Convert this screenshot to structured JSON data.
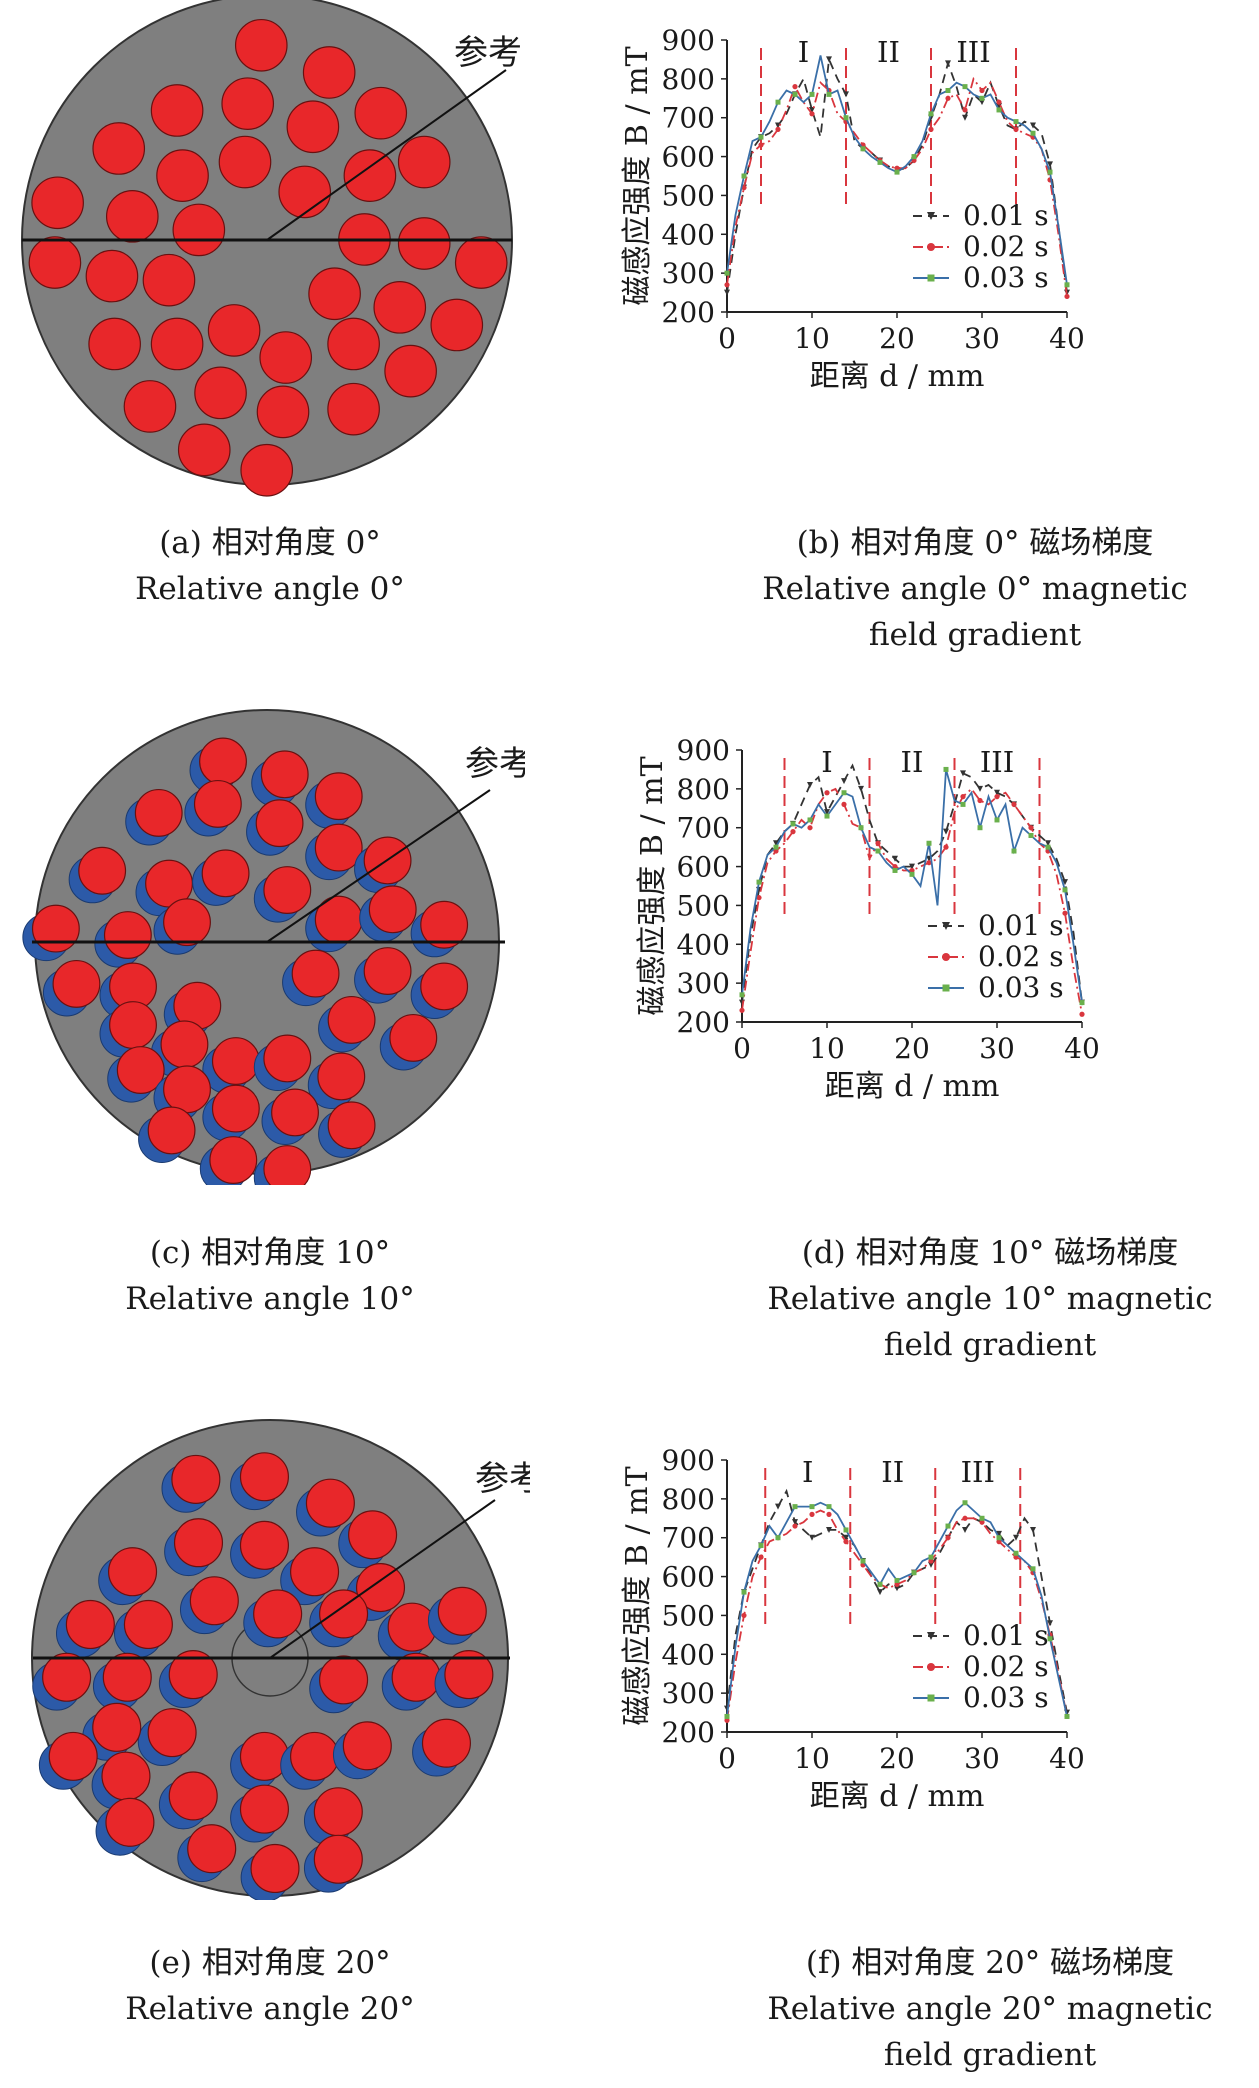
{
  "reference_line_label": "参考线",
  "panels": [
    {
      "id": "a",
      "caption_zh": "(a) 相对角度 0°",
      "caption_en": "Relative angle 0°"
    },
    {
      "id": "b",
      "caption_zh": "(b) 相对角度 0° 磁场梯度",
      "caption_en": "Relative angle 0° magnetic field gradient"
    },
    {
      "id": "c",
      "caption_zh": "(c) 相对角度 10°",
      "caption_en": "Relative angle 10°"
    },
    {
      "id": "d",
      "caption_zh": "(d) 相对角度 10° 磁场梯度",
      "caption_en": "Relative angle 10° magnetic field gradient"
    },
    {
      "id": "e",
      "caption_zh": "(e) 相对角度 20°",
      "caption_en": "Relative angle 20°"
    },
    {
      "id": "f",
      "caption_zh": "(f) 相对角度 20° 磁场梯度",
      "caption_en": "Relative angle 20° magnetic field gradient"
    }
  ],
  "colors": {
    "disc": "#7f7f7f",
    "red_magnet": "#e8272a",
    "blue_magnet": "#2c5aa8",
    "s001": "#333333",
    "s002": "#d9363e",
    "s003": "#3a6fa8",
    "s003_marker": "#6ab04c",
    "region_line": "#d9363e"
  },
  "chart_data": [
    {
      "type": "line",
      "panel": "b",
      "xlabel": "距离 d / mm",
      "ylabel": "磁感应强度 B / mT",
      "xlim": [
        0,
        40
      ],
      "ylim": [
        200,
        900
      ],
      "xticks": [
        0,
        10,
        20,
        30,
        40
      ],
      "yticks": [
        200,
        300,
        400,
        500,
        600,
        700,
        800,
        900
      ],
      "region_boundaries": [
        4,
        14,
        24,
        34
      ],
      "region_labels": [
        {
          "text": "I",
          "x": 9
        },
        {
          "text": "II",
          "x": 19
        },
        {
          "text": "III",
          "x": 29
        }
      ],
      "series": [
        {
          "name": "0.01 s",
          "style": "dashed",
          "marker": "triangle",
          "x": [
            0,
            1,
            2,
            3,
            4,
            5,
            6,
            7,
            8,
            9,
            10,
            11,
            12,
            13,
            14,
            15,
            16,
            17,
            18,
            19,
            20,
            21,
            22,
            23,
            24,
            25,
            26,
            27,
            28,
            29,
            30,
            31,
            32,
            33,
            34,
            35,
            36,
            37,
            38,
            39,
            40
          ],
          "y": [
            250,
            400,
            520,
            620,
            650,
            660,
            680,
            710,
            760,
            800,
            720,
            650,
            850,
            800,
            760,
            640,
            620,
            610,
            590,
            575,
            565,
            570,
            590,
            630,
            700,
            760,
            840,
            780,
            700,
            760,
            740,
            790,
            730,
            680,
            670,
            690,
            680,
            660,
            580,
            420,
            250
          ]
        },
        {
          "name": "0.02 s",
          "style": "dashdot",
          "marker": "circle",
          "x": [
            0,
            1,
            2,
            3,
            4,
            5,
            6,
            7,
            8,
            9,
            10,
            11,
            12,
            13,
            14,
            15,
            16,
            17,
            18,
            19,
            20,
            21,
            22,
            23,
            24,
            25,
            26,
            27,
            28,
            29,
            30,
            31,
            32,
            33,
            34,
            35,
            36,
            37,
            38,
            39,
            40
          ],
          "y": [
            270,
            420,
            520,
            610,
            630,
            640,
            670,
            720,
            780,
            740,
            710,
            790,
            770,
            710,
            690,
            660,
            630,
            610,
            590,
            575,
            570,
            570,
            590,
            620,
            670,
            700,
            750,
            760,
            720,
            800,
            770,
            790,
            740,
            690,
            670,
            660,
            650,
            620,
            540,
            400,
            240
          ]
        },
        {
          "name": "0.03 s",
          "style": "solid",
          "marker": "square",
          "x": [
            0,
            1,
            2,
            3,
            4,
            5,
            6,
            7,
            8,
            9,
            10,
            11,
            12,
            13,
            14,
            15,
            16,
            17,
            18,
            19,
            20,
            21,
            22,
            23,
            24,
            25,
            26,
            27,
            28,
            29,
            30,
            31,
            32,
            33,
            34,
            35,
            36,
            37,
            38,
            39,
            40
          ],
          "y": [
            300,
            450,
            550,
            640,
            650,
            690,
            740,
            770,
            760,
            740,
            760,
            860,
            760,
            770,
            700,
            650,
            620,
            600,
            585,
            570,
            560,
            575,
            600,
            640,
            710,
            760,
            770,
            790,
            780,
            760,
            750,
            760,
            720,
            700,
            690,
            680,
            660,
            620,
            560,
            420,
            270
          ]
        }
      ]
    },
    {
      "type": "line",
      "panel": "d",
      "xlabel": "距离 d / mm",
      "ylabel": "磁感应强度 B / mT",
      "xlim": [
        0,
        40
      ],
      "ylim": [
        200,
        900
      ],
      "xticks": [
        0,
        10,
        20,
        30,
        40
      ],
      "yticks": [
        200,
        300,
        400,
        500,
        600,
        700,
        800,
        900
      ],
      "region_boundaries": [
        5,
        15,
        25,
        35
      ],
      "region_labels": [
        {
          "text": "I",
          "x": 10
        },
        {
          "text": "II",
          "x": 20
        },
        {
          "text": "III",
          "x": 30
        }
      ],
      "series": [
        {
          "name": "0.01 s",
          "style": "dashed",
          "marker": "triangle",
          "x": [
            0,
            1,
            2,
            3,
            4,
            5,
            6,
            7,
            8,
            9,
            10,
            11,
            12,
            13,
            14,
            15,
            16,
            17,
            18,
            19,
            20,
            21,
            22,
            23,
            24,
            25,
            26,
            27,
            28,
            29,
            30,
            31,
            32,
            33,
            34,
            35,
            36,
            37,
            38,
            39,
            40
          ],
          "y": [
            250,
            420,
            540,
            630,
            660,
            690,
            710,
            760,
            810,
            830,
            740,
            780,
            820,
            860,
            800,
            720,
            660,
            640,
            620,
            600,
            600,
            610,
            620,
            640,
            690,
            760,
            840,
            830,
            800,
            810,
            790,
            780,
            760,
            730,
            700,
            680,
            660,
            620,
            560,
            430,
            250
          ]
        },
        {
          "name": "0.02 s",
          "style": "dashdot",
          "marker": "circle",
          "x": [
            0,
            1,
            2,
            3,
            4,
            5,
            6,
            7,
            8,
            9,
            10,
            11,
            12,
            13,
            14,
            15,
            16,
            17,
            18,
            19,
            20,
            21,
            22,
            23,
            24,
            25,
            26,
            27,
            28,
            29,
            30,
            31,
            32,
            33,
            34,
            35,
            36,
            37,
            38,
            39,
            40
          ],
          "y": [
            230,
            380,
            520,
            610,
            640,
            660,
            690,
            720,
            700,
            760,
            790,
            800,
            760,
            710,
            700,
            620,
            660,
            620,
            600,
            590,
            590,
            600,
            610,
            620,
            650,
            740,
            780,
            800,
            770,
            760,
            780,
            790,
            760,
            730,
            700,
            660,
            640,
            580,
            480,
            340,
            220
          ]
        },
        {
          "name": "0.03 s",
          "style": "solid",
          "marker": "square",
          "x": [
            0,
            1,
            2,
            3,
            4,
            5,
            6,
            7,
            8,
            9,
            10,
            11,
            12,
            13,
            14,
            15,
            16,
            17,
            18,
            19,
            20,
            21,
            22,
            23,
            24,
            25,
            26,
            27,
            28,
            29,
            30,
            31,
            32,
            33,
            34,
            35,
            36,
            37,
            38,
            39,
            40
          ],
          "y": [
            270,
            440,
            560,
            630,
            650,
            690,
            710,
            700,
            720,
            760,
            730,
            760,
            790,
            780,
            700,
            650,
            640,
            610,
            590,
            600,
            580,
            550,
            660,
            500,
            850,
            770,
            760,
            790,
            700,
            780,
            720,
            760,
            640,
            700,
            680,
            660,
            650,
            610,
            540,
            400,
            250
          ]
        }
      ]
    },
    {
      "type": "line",
      "panel": "f",
      "xlabel": "距离 d / mm",
      "ylabel": "磁感应强度 B / mT",
      "xlim": [
        0,
        40
      ],
      "ylim": [
        200,
        900
      ],
      "xticks": [
        0,
        10,
        20,
        30,
        40
      ],
      "yticks": [
        200,
        300,
        400,
        500,
        600,
        700,
        800,
        900
      ],
      "region_boundaries": [
        4.5,
        14.5,
        24.5,
        34.5
      ],
      "region_labels": [
        {
          "text": "I",
          "x": 9.5
        },
        {
          "text": "II",
          "x": 19.5
        },
        {
          "text": "III",
          "x": 29.5
        }
      ],
      "series": [
        {
          "name": "0.01 s",
          "style": "dashed",
          "marker": "triangle",
          "x": [
            0,
            1,
            2,
            3,
            4,
            5,
            6,
            7,
            8,
            9,
            10,
            11,
            12,
            13,
            14,
            15,
            16,
            17,
            18,
            19,
            20,
            21,
            22,
            23,
            24,
            25,
            26,
            27,
            28,
            29,
            30,
            31,
            32,
            33,
            34,
            35,
            36,
            37,
            38,
            39,
            40
          ],
          "y": [
            260,
            450,
            560,
            620,
            680,
            740,
            780,
            820,
            740,
            720,
            700,
            710,
            720,
            720,
            700,
            680,
            640,
            600,
            560,
            580,
            570,
            580,
            610,
            620,
            630,
            660,
            700,
            740,
            720,
            750,
            740,
            720,
            710,
            680,
            700,
            750,
            720,
            600,
            480,
            360,
            250
          ]
        },
        {
          "name": "0.02 s",
          "style": "dashdot",
          "marker": "circle",
          "x": [
            0,
            1,
            2,
            3,
            4,
            5,
            6,
            7,
            8,
            9,
            10,
            11,
            12,
            13,
            14,
            15,
            16,
            17,
            18,
            19,
            20,
            21,
            22,
            23,
            24,
            25,
            26,
            27,
            28,
            29,
            30,
            31,
            32,
            33,
            34,
            35,
            36,
            37,
            38,
            39,
            40
          ],
          "y": [
            230,
            380,
            500,
            600,
            650,
            690,
            700,
            710,
            730,
            740,
            760,
            770,
            760,
            720,
            690,
            660,
            630,
            600,
            580,
            570,
            580,
            590,
            610,
            620,
            640,
            670,
            700,
            740,
            750,
            750,
            740,
            710,
            690,
            670,
            650,
            640,
            610,
            540,
            450,
            350,
            240
          ]
        },
        {
          "name": "0.03 s",
          "style": "solid",
          "marker": "square",
          "x": [
            0,
            1,
            2,
            3,
            4,
            5,
            6,
            7,
            8,
            9,
            10,
            11,
            12,
            13,
            14,
            15,
            16,
            17,
            18,
            19,
            20,
            21,
            22,
            23,
            24,
            25,
            26,
            27,
            28,
            29,
            30,
            31,
            32,
            33,
            34,
            35,
            36,
            37,
            38,
            39,
            40
          ],
          "y": [
            240,
            420,
            560,
            640,
            680,
            730,
            700,
            740,
            780,
            780,
            780,
            790,
            780,
            760,
            720,
            680,
            640,
            610,
            580,
            620,
            590,
            600,
            610,
            640,
            650,
            690,
            730,
            770,
            790,
            770,
            750,
            740,
            700,
            680,
            660,
            640,
            620,
            550,
            440,
            340,
            240
          ]
        }
      ]
    }
  ]
}
